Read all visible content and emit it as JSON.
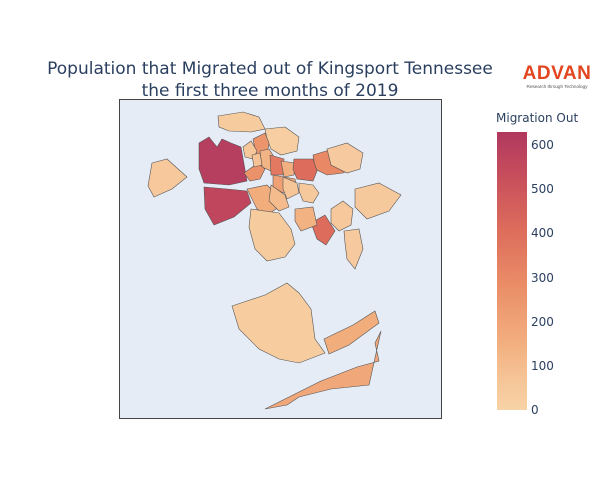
{
  "title": {
    "line1": "Population that Migrated out of Kingsport Tennessee",
    "line2": "the first three months of 2019"
  },
  "logo": {
    "name": "ADVAN",
    "tagline": "Research through Technology"
  },
  "colorbar": {
    "title": "Migration Out",
    "min": 0,
    "max": 630,
    "ticks": [
      "600",
      "500",
      "400",
      "300",
      "200",
      "100",
      "0"
    ],
    "colors": [
      "#f7d3a7",
      "#f6c699",
      "#f2ad7d",
      "#ea8d67",
      "#dd6c5c",
      "#c64d5c",
      "#b0385f"
    ]
  },
  "map": {
    "background": "#e5ecf6",
    "border_color": "#444444",
    "regions": [
      {
        "id": 1,
        "value": 60
      },
      {
        "id": 2,
        "value": 40
      },
      {
        "id": 3,
        "value": 90
      },
      {
        "id": 4,
        "value": 290
      },
      {
        "id": 5,
        "value": 600
      },
      {
        "id": 6,
        "value": 100
      },
      {
        "id": 7,
        "value": 180
      },
      {
        "id": 8,
        "value": 300
      },
      {
        "id": 9,
        "value": 120
      },
      {
        "id": 10,
        "value": 380
      },
      {
        "id": 11,
        "value": 200
      },
      {
        "id": 12,
        "value": 330
      },
      {
        "id": 13,
        "value": 420
      },
      {
        "id": 14,
        "value": 250
      },
      {
        "id": 15,
        "value": 70
      },
      {
        "id": 16,
        "value": 560
      },
      {
        "id": 17,
        "value": 210
      },
      {
        "id": 18,
        "value": 150
      },
      {
        "id": 19,
        "value": 110
      },
      {
        "id": 20,
        "value": 80
      },
      {
        "id": 21,
        "value": 420
      },
      {
        "id": 22,
        "value": 190
      },
      {
        "id": 23,
        "value": 90
      },
      {
        "id": 24,
        "value": 80
      },
      {
        "id": 25,
        "value": 60
      },
      {
        "id": 26,
        "value": 70
      },
      {
        "id": 27,
        "value": 50
      },
      {
        "id": 28,
        "value": 210
      },
      {
        "id": 29,
        "value": 230
      }
    ]
  }
}
